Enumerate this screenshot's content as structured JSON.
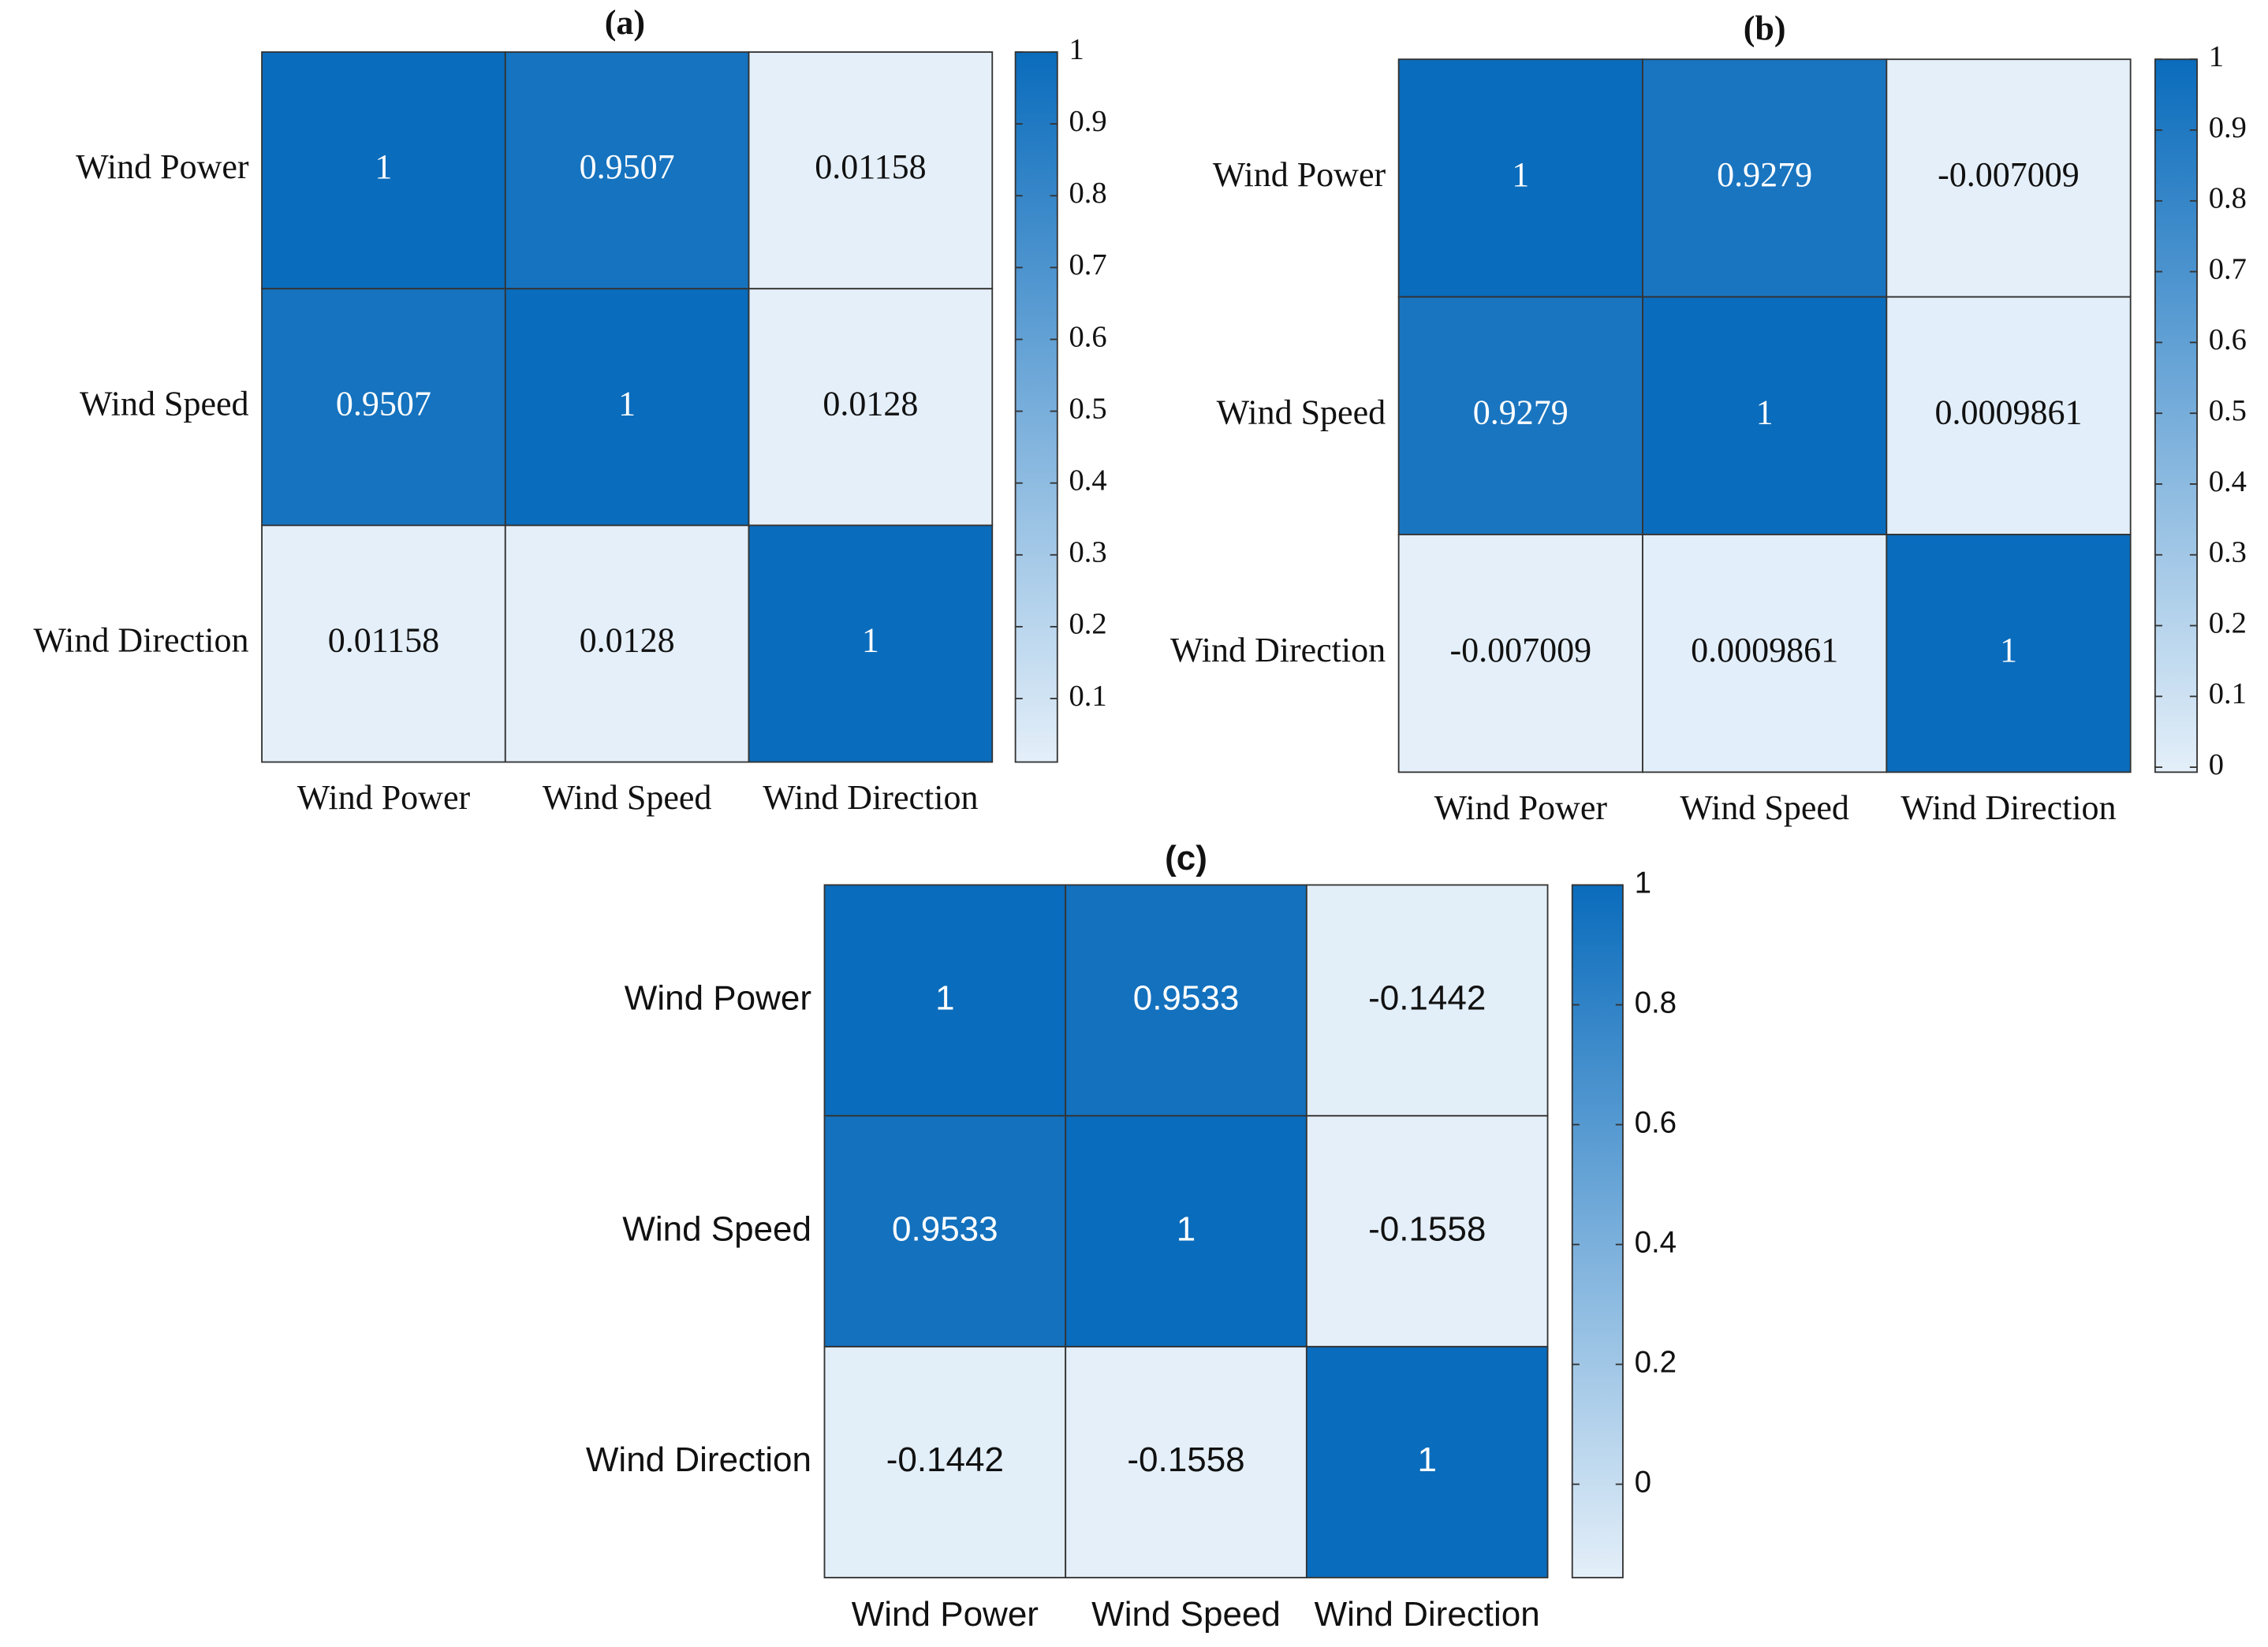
{
  "chart_data": [
    {
      "type": "heatmap",
      "title": "(a)",
      "x": [
        "Wind Power",
        "Wind Speed",
        "Wind Direction"
      ],
      "y": [
        "Wind Power",
        "Wind Speed",
        "Wind Direction"
      ],
      "values": [
        [
          1,
          0.9507,
          0.01158
        ],
        [
          0.9507,
          1,
          0.0128
        ],
        [
          0.01158,
          0.0128,
          1
        ]
      ],
      "colors": [
        "#e4eff9",
        "#0a6cbc"
      ],
      "clim": [
        0.01158,
        1
      ],
      "cticks": [
        0.1,
        0.2,
        0.3,
        0.4,
        0.5,
        0.6,
        0.7,
        0.8,
        0.9,
        1
      ]
    },
    {
      "type": "heatmap",
      "title": "(b)",
      "x": [
        "Wind Power",
        "Wind Speed",
        "Wind Direction"
      ],
      "y": [
        "Wind Power",
        "Wind Speed",
        "Wind Direction"
      ],
      "values": [
        [
          1,
          0.9279,
          -0.007009
        ],
        [
          0.9279,
          1,
          0.0009861
        ],
        [
          -0.007009,
          0.0009861,
          1
        ]
      ],
      "colors": [
        "#e4eff9",
        "#0a6cbc"
      ],
      "clim": [
        -0.007009,
        1
      ],
      "cticks": [
        0,
        0.1,
        0.2,
        0.3,
        0.4,
        0.5,
        0.6,
        0.7,
        0.8,
        0.9,
        1
      ]
    },
    {
      "type": "heatmap",
      "title": "(c)",
      "x": [
        "Wind Power",
        "Wind Speed",
        "Wind Direction"
      ],
      "y": [
        "Wind Power",
        "Wind Speed",
        "Wind Direction"
      ],
      "values": [
        [
          1,
          0.9533,
          -0.1442
        ],
        [
          0.9533,
          1,
          -0.1558
        ],
        [
          -0.1442,
          -0.1558,
          1
        ]
      ],
      "colors": [
        "#e4eff9",
        "#0a6cbc"
      ],
      "clim": [
        -0.1558,
        1
      ],
      "cticks": [
        0,
        0.2,
        0.4,
        0.6,
        0.8,
        1
      ]
    }
  ]
}
